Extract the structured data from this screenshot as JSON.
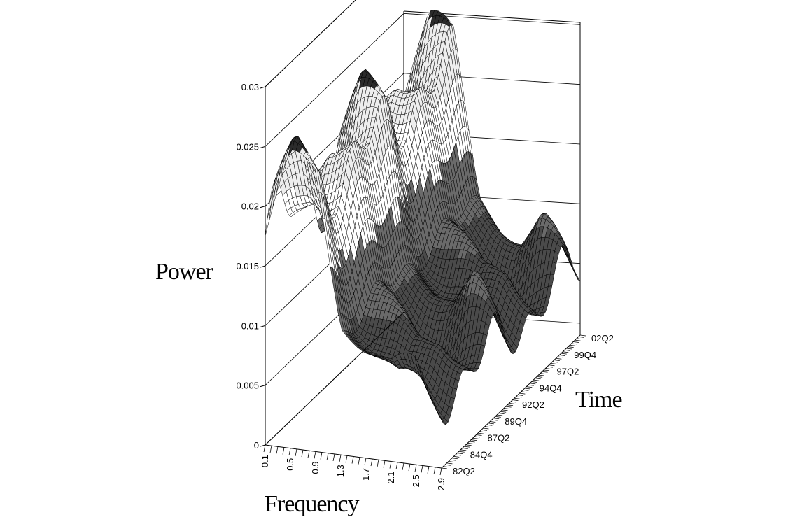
{
  "chart_data": {
    "type": "surface",
    "title": "",
    "zlabel": "Power",
    "xlabel": "Frequency",
    "ylabel": "Time",
    "zlim": [
      0,
      0.03
    ],
    "z_ticks": [
      "0",
      "0.005",
      "0.01",
      "0.015",
      "0.02",
      "0.025",
      "0.03"
    ],
    "x_ticks": [
      "0.1",
      "0.5",
      "0.9",
      "1.3",
      "1.7",
      "2.1",
      "2.5",
      "2.9"
    ],
    "y_ticks": [
      "82Q2",
      "84Q4",
      "87Q2",
      "89Q4",
      "92Q2",
      "94Q4",
      "97Q2",
      "99Q4",
      "02Q2"
    ],
    "grid": true,
    "shading": "grayscale bands by power level",
    "series": [
      {
        "values_by_frequency": [
          {
            "frequency": 0.1,
            "power_range": [
              0.013,
              0.022
            ]
          },
          {
            "frequency": 0.5,
            "power_range": [
              0.017,
              0.026
            ]
          },
          {
            "frequency": 0.9,
            "power_range": [
              0.018,
              0.025
            ]
          },
          {
            "frequency": 1.3,
            "power_range": [
              0.009,
              0.012
            ]
          },
          {
            "frequency": 1.7,
            "power_range": [
              0.006,
              0.011
            ]
          },
          {
            "frequency": 2.1,
            "power_range": [
              0.004,
              0.01
            ]
          },
          {
            "frequency": 2.5,
            "power_range": [
              0.004,
              0.012
            ]
          },
          {
            "frequency": 2.9,
            "power_range": [
              0.003,
              0.009
            ]
          }
        ]
      }
    ]
  }
}
